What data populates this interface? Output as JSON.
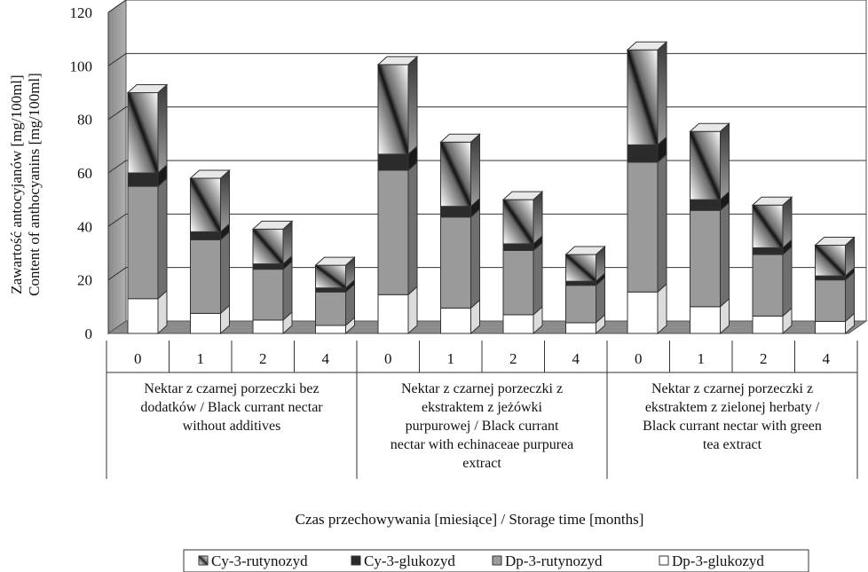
{
  "chart_data": {
    "type": "bar",
    "stacked": true,
    "three_d": true,
    "ylabel_lines": [
      "Zawartość antocyjanów [mg/100ml]",
      "Content of anthocyanins  [mg/100ml]"
    ],
    "xlabel": "Czas przechowywania [miesiące] / Storage time [months]",
    "ylim": [
      0,
      120
    ],
    "yticks": [
      0,
      20,
      40,
      60,
      80,
      100,
      120
    ],
    "grid": true,
    "legend_position": "bottom",
    "groups": [
      {
        "label_lines": [
          "Nektar z czarnej porzeczki bez",
          "dodatków / Black currant nectar",
          "without additives"
        ],
        "months": [
          "0",
          "1",
          "2",
          "4"
        ]
      },
      {
        "label_lines": [
          "Nektar z czarnej porzeczki z",
          "ekstraktem z jeżówki",
          "purpurowej / Black currant",
          "nectar  with echinaceae purpurea",
          "extract"
        ],
        "months": [
          "0",
          "1",
          "2",
          "4"
        ]
      },
      {
        "label_lines": [
          "Nektar z czarnej porzeczki z",
          "ekstraktem z zielonej herbaty /",
          "Black currant nectar  with green",
          "tea extract"
        ],
        "months": [
          "0",
          "1",
          "2",
          "4"
        ]
      }
    ],
    "series": [
      {
        "name": "Dp-3-glukozyd",
        "color": "#ffffff",
        "values": [
          13,
          7.5,
          5,
          3,
          14.5,
          9.5,
          7,
          4,
          15.5,
          10,
          6.5,
          4.5
        ]
      },
      {
        "name": "Dp-3-rutynozyd",
        "color": "#9a9a9a",
        "values": [
          42,
          27.5,
          19,
          12.5,
          46.5,
          34,
          24,
          14,
          48.5,
          36,
          23,
          15.5
        ]
      },
      {
        "name": "Cy-3-glukozyd",
        "color": "#2b2b2b",
        "values": [
          5,
          3,
          2,
          1.5,
          6,
          4,
          2.5,
          1.5,
          6.5,
          4,
          2.5,
          1.5
        ]
      },
      {
        "name": "Cy-3-rutynozyd",
        "color": "gradient",
        "values": [
          30,
          20,
          13,
          8.5,
          33.5,
          24,
          16.5,
          10,
          35.5,
          25.5,
          16,
          11.5
        ]
      }
    ],
    "legend_order": [
      "Cy-3-rutynozyd",
      "Cy-3-glukozyd",
      "Dp-3-rutynozyd",
      "Dp-3-glukozyd"
    ]
  }
}
